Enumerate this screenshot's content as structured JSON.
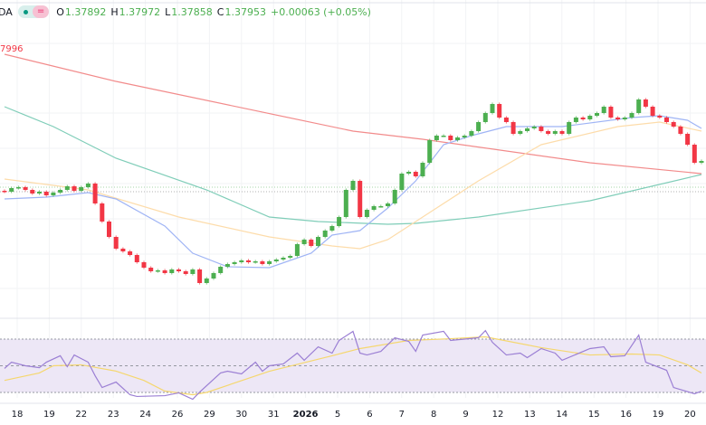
{
  "header": {
    "symbol_fragment": "DA",
    "status_icon": "green-dot-icon",
    "equals_icon": "equals-icon",
    "open_key": "O",
    "open": "1.37892",
    "high_key": "H",
    "high": "1.37972",
    "low_key": "L",
    "low": "1.37858",
    "close_key": "C",
    "close": "1.37953",
    "change": "+0.00063 (+0.05%)"
  },
  "ma_label": "7996",
  "colors": {
    "up": "#4caf50",
    "down": "#f23645",
    "ma_red": "#f28b8b",
    "ma_teal": "#7fcdb8",
    "ma_orange": "#fddcaa",
    "ma_blue": "#9fb4f5",
    "rsi": "#9b7fd4",
    "rsi_ma": "#f5d76e",
    "rsi_band": "#ede7f6"
  },
  "chart_data": [
    {
      "type": "candlestick",
      "ylim": [
        1.3715,
        1.3885
      ],
      "x_tick_labels": [
        "18",
        "19",
        "22",
        "23",
        "24",
        "26",
        "29",
        "30",
        "31",
        "2026",
        "5",
        "6",
        "7",
        "8",
        "9",
        "12",
        "13",
        "14",
        "15",
        "16",
        "19",
        "20"
      ],
      "grid": true,
      "closes": [
        1.3779,
        1.3781,
        1.37815,
        1.378,
        1.3778,
        1.3779,
        1.3777,
        1.37785,
        1.378,
        1.3782,
        1.37795,
        1.37815,
        1.37835,
        1.37725,
        1.37625,
        1.3754,
        1.37475,
        1.3746,
        1.3744,
        1.374,
        1.3737,
        1.3735,
        1.37355,
        1.3734,
        1.3736,
        1.3735,
        1.37335,
        1.3736,
        1.37285,
        1.3731,
        1.3734,
        1.37375,
        1.3739,
        1.374,
        1.3741,
        1.374,
        1.37405,
        1.3739,
        1.37405,
        1.37415,
        1.37425,
        1.37435,
        1.375,
        1.37525,
        1.3749,
        1.3754,
        1.37575,
        1.376,
        1.3765,
        1.378,
        1.3785,
        1.3765,
        1.3769,
        1.3771,
        1.3771,
        1.37725,
        1.378,
        1.3789,
        1.379,
        1.37875,
        1.3795,
        1.38075,
        1.381,
        1.381,
        1.38075,
        1.3809,
        1.381,
        1.38125,
        1.38175,
        1.38225,
        1.38275,
        1.382,
        1.38175,
        1.3811,
        1.38125,
        1.3814,
        1.3815,
        1.38125,
        1.3811,
        1.38125,
        1.3811,
        1.38175,
        1.382,
        1.3819,
        1.3821,
        1.38225,
        1.3826,
        1.382,
        1.3819,
        1.382,
        1.38225,
        1.383,
        1.3826,
        1.3821,
        1.382,
        1.38175,
        1.3815,
        1.3811,
        1.3805,
        1.3795,
        1.3796
      ],
      "moving_averages": [
        {
          "color_key": "ma_red",
          "points": [
            [
              0,
              1.3855
            ],
            [
              16,
              1.384
            ],
            [
              50,
              1.38125
            ],
            [
              60,
              1.3808
            ],
            [
              84,
              1.3795
            ],
            [
              100,
              1.3789
            ]
          ]
        },
        {
          "color_key": "ma_teal",
          "points": [
            [
              0,
              1.3826
            ],
            [
              7,
              1.3815
            ],
            [
              16,
              1.37975
            ],
            [
              29,
              1.378
            ],
            [
              38,
              1.3765
            ],
            [
              45,
              1.37625
            ],
            [
              55,
              1.3761
            ],
            [
              59,
              1.37615
            ],
            [
              68,
              1.3765
            ],
            [
              84,
              1.3774
            ],
            [
              100,
              1.37885
            ]
          ]
        },
        {
          "color_key": "ma_orange",
          "points": [
            [
              0,
              1.3786
            ],
            [
              12,
              1.378
            ],
            [
              25,
              1.3765
            ],
            [
              38,
              1.3754
            ],
            [
              47,
              1.3749
            ],
            [
              51,
              1.37475
            ],
            [
              55,
              1.37525
            ],
            [
              60,
              1.3765
            ],
            [
              68,
              1.3785
            ],
            [
              77,
              1.3805
            ],
            [
              88,
              1.3815
            ],
            [
              94,
              1.38175
            ],
            [
              100,
              1.38125
            ]
          ]
        },
        {
          "color_key": "ma_blue",
          "points": [
            [
              0,
              1.3775
            ],
            [
              6,
              1.3776
            ],
            [
              12,
              1.37785
            ],
            [
              16,
              1.3775
            ],
            [
              23,
              1.376
            ],
            [
              27,
              1.3745
            ],
            [
              32,
              1.37375
            ],
            [
              38,
              1.3737
            ],
            [
              44,
              1.3745
            ],
            [
              47,
              1.3755
            ],
            [
              51,
              1.37575
            ],
            [
              55,
              1.377
            ],
            [
              59,
              1.3785
            ],
            [
              63,
              1.3805
            ],
            [
              67,
              1.381
            ],
            [
              72,
              1.3815
            ],
            [
              80,
              1.3815
            ],
            [
              90,
              1.382
            ],
            [
              94,
              1.3821
            ],
            [
              98,
              1.38185
            ],
            [
              100,
              1.3814
            ]
          ]
        }
      ],
      "horizontal_lines": [
        {
          "price": 1.37815,
          "color": "#a5d6a7"
        },
        {
          "price": 1.3779,
          "color": "#b0b0b0"
        }
      ]
    },
    {
      "type": "line",
      "indicator": "RSI",
      "ylim": [
        30,
        70
      ],
      "levels": [
        70,
        50,
        30
      ],
      "rsi_points": [
        [
          0,
          48
        ],
        [
          1,
          52.7
        ],
        [
          3,
          50
        ],
        [
          5,
          48.6
        ],
        [
          6,
          52.7
        ],
        [
          8,
          57.5
        ],
        [
          9,
          49.3
        ],
        [
          10,
          58.1
        ],
        [
          12,
          52.7
        ],
        [
          13,
          42.5
        ],
        [
          14,
          33.7
        ],
        [
          16,
          37.8
        ],
        [
          18,
          28.3
        ],
        [
          19,
          27
        ],
        [
          23,
          27.6
        ],
        [
          25,
          29.7
        ],
        [
          27,
          24.9
        ],
        [
          28,
          30.3
        ],
        [
          31,
          44.6
        ],
        [
          32,
          45.9
        ],
        [
          34,
          43.9
        ],
        [
          36,
          52.7
        ],
        [
          37,
          45.9
        ],
        [
          38,
          50
        ],
        [
          40,
          51.4
        ],
        [
          42,
          59.5
        ],
        [
          43,
          54.1
        ],
        [
          45,
          64.2
        ],
        [
          47,
          59.5
        ],
        [
          48,
          69
        ],
        [
          50,
          75.8
        ],
        [
          51,
          59.5
        ],
        [
          52,
          58.1
        ],
        [
          54,
          60.8
        ],
        [
          56,
          71
        ],
        [
          58,
          68.3
        ],
        [
          59,
          60.8
        ],
        [
          60,
          73
        ],
        [
          63,
          75.8
        ],
        [
          64,
          69
        ],
        [
          68,
          71
        ],
        [
          69,
          76.4
        ],
        [
          70,
          67.6
        ],
        [
          72,
          58.1
        ],
        [
          74,
          59.5
        ],
        [
          75,
          56.1
        ],
        [
          77,
          62.9
        ],
        [
          79,
          59.5
        ],
        [
          80,
          54.1
        ],
        [
          84,
          62.9
        ],
        [
          86,
          64.2
        ],
        [
          87,
          56.8
        ],
        [
          89,
          57.5
        ],
        [
          91,
          73
        ],
        [
          92,
          52.7
        ],
        [
          95,
          46.6
        ],
        [
          96,
          33.7
        ],
        [
          99,
          29
        ],
        [
          100,
          31
        ]
      ],
      "rsi_ma_points": [
        [
          0,
          39
        ],
        [
          5,
          44.6
        ],
        [
          7,
          50
        ],
        [
          11,
          50.7
        ],
        [
          16,
          46
        ],
        [
          20,
          39
        ],
        [
          23,
          31
        ],
        [
          27,
          28.3
        ],
        [
          29,
          30
        ],
        [
          38,
          45.9
        ],
        [
          47,
          57.5
        ],
        [
          51,
          62.9
        ],
        [
          58,
          69
        ],
        [
          64,
          70.3
        ],
        [
          69,
          71.7
        ],
        [
          77,
          63.6
        ],
        [
          84,
          58.1
        ],
        [
          90,
          58.8
        ],
        [
          94,
          58.1
        ],
        [
          98,
          50.7
        ],
        [
          100,
          44.6
        ]
      ]
    }
  ]
}
